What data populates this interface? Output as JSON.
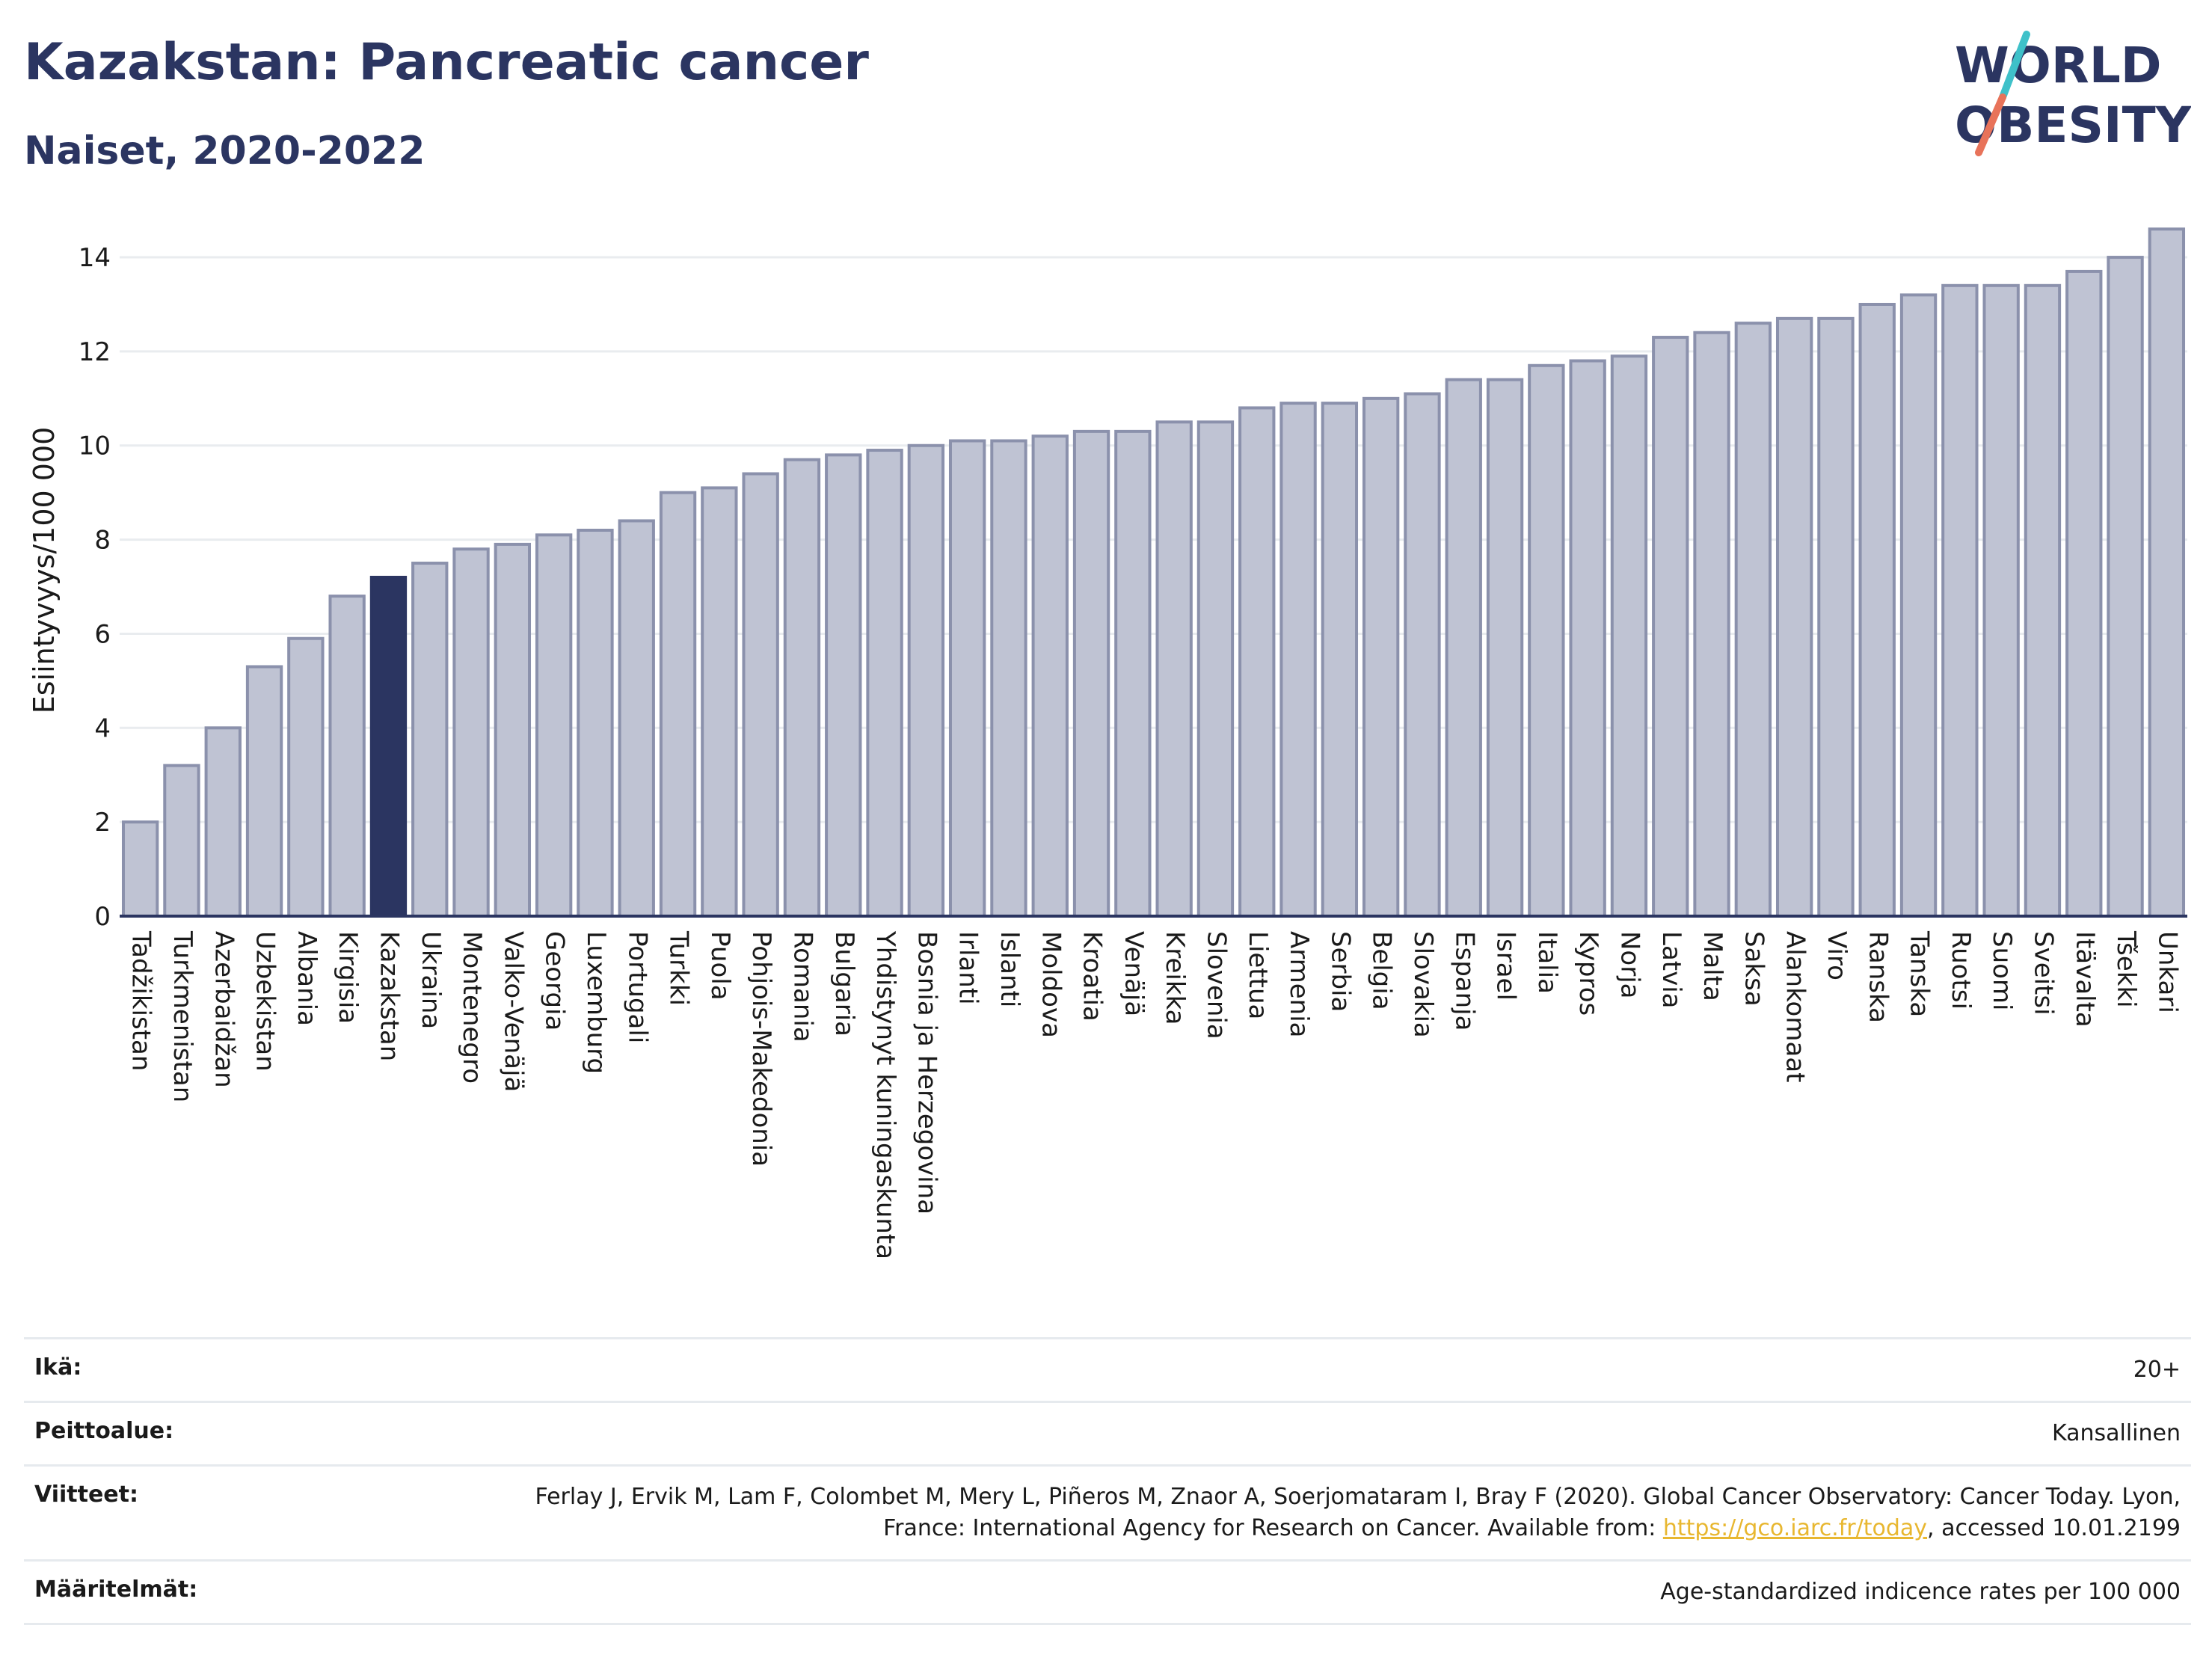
{
  "header": {
    "title": "Kazakstan: Pancreatic cancer",
    "subtitle": "Naiset, 2020-2022"
  },
  "logo": {
    "line1": "WORLD",
    "line2": "OBESITY",
    "slash_color_top": "#3fc1c9",
    "slash_color_bottom": "#e8735a"
  },
  "chart_data": {
    "type": "bar",
    "ylabel": "Esiintyvyys/100 000",
    "ylim": [
      0,
      14.7
    ],
    "yticks": [
      0,
      2,
      4,
      6,
      8,
      10,
      12,
      14
    ],
    "grid": true,
    "highlight": "Kazakstan",
    "colors": {
      "bar": "#bfc3d3",
      "bar_edge": "#8b91ac",
      "highlight": "#2b3561"
    },
    "categories": [
      "Tadžikistan",
      "Turkmenistan",
      "Azerbaidžan",
      "Uzbekistan",
      "Albania",
      "Kirgisia",
      "Kazakstan",
      "Ukraina",
      "Montenegro",
      "Valko-Venäjä",
      "Georgia",
      "Luxemburg",
      "Portugali",
      "Turkki",
      "Puola",
      "Pohjois-Makedonia",
      "Romania",
      "Bulgaria",
      "Yhdistynyt kuningaskunta",
      "Bosnia ja Herzegovina",
      "Irlanti",
      "Islanti",
      "Moldova",
      "Kroatia",
      "Venäjä",
      "Kreikka",
      "Slovenia",
      "Liettua",
      "Armenia",
      "Serbia",
      "Belgia",
      "Slovakia",
      "Espanja",
      "Israel",
      "Italia",
      "Kypros",
      "Norja",
      "Latvia",
      "Malta",
      "Saksa",
      "Alankomaat",
      "Viro",
      "Ranska",
      "Tanska",
      "Ruotsi",
      "Suomi",
      "Sveitsi",
      "Itävalta",
      "Tšekki",
      "Unkari"
    ],
    "values": [
      2.0,
      3.2,
      4.0,
      5.3,
      5.9,
      6.8,
      7.2,
      7.5,
      7.8,
      7.9,
      8.1,
      8.2,
      8.4,
      9.0,
      9.1,
      9.4,
      9.7,
      9.8,
      9.9,
      10.0,
      10.1,
      10.1,
      10.2,
      10.3,
      10.3,
      10.5,
      10.5,
      10.8,
      10.9,
      10.9,
      11.0,
      11.1,
      11.4,
      11.4,
      11.7,
      11.8,
      11.9,
      12.3,
      12.4,
      12.6,
      12.7,
      12.7,
      13.0,
      13.2,
      13.4,
      13.4,
      13.4,
      13.7,
      14.0,
      14.6
    ]
  },
  "info": {
    "age_label": "Ikä:",
    "age_value": "20+",
    "coverage_label": "Peittoalue:",
    "coverage_value": "Kansallinen",
    "refs_label": "Viitteet:",
    "refs_text_1": "Ferlay J, Ervik M, Lam F, Colombet M, Mery L, Piñeros M, Znaor A, Soerjomataram I, Bray F (2020). Global Cancer Observatory: Cancer Today. Lyon, France: International Agency for Research on Cancer. Available from: ",
    "refs_link": "https://gco.iarc.fr/today",
    "refs_text_2": ", accessed 10.01.2199",
    "defs_label": "Määritelmät:",
    "defs_value": "Age-standardized indicence rates per 100 000"
  }
}
